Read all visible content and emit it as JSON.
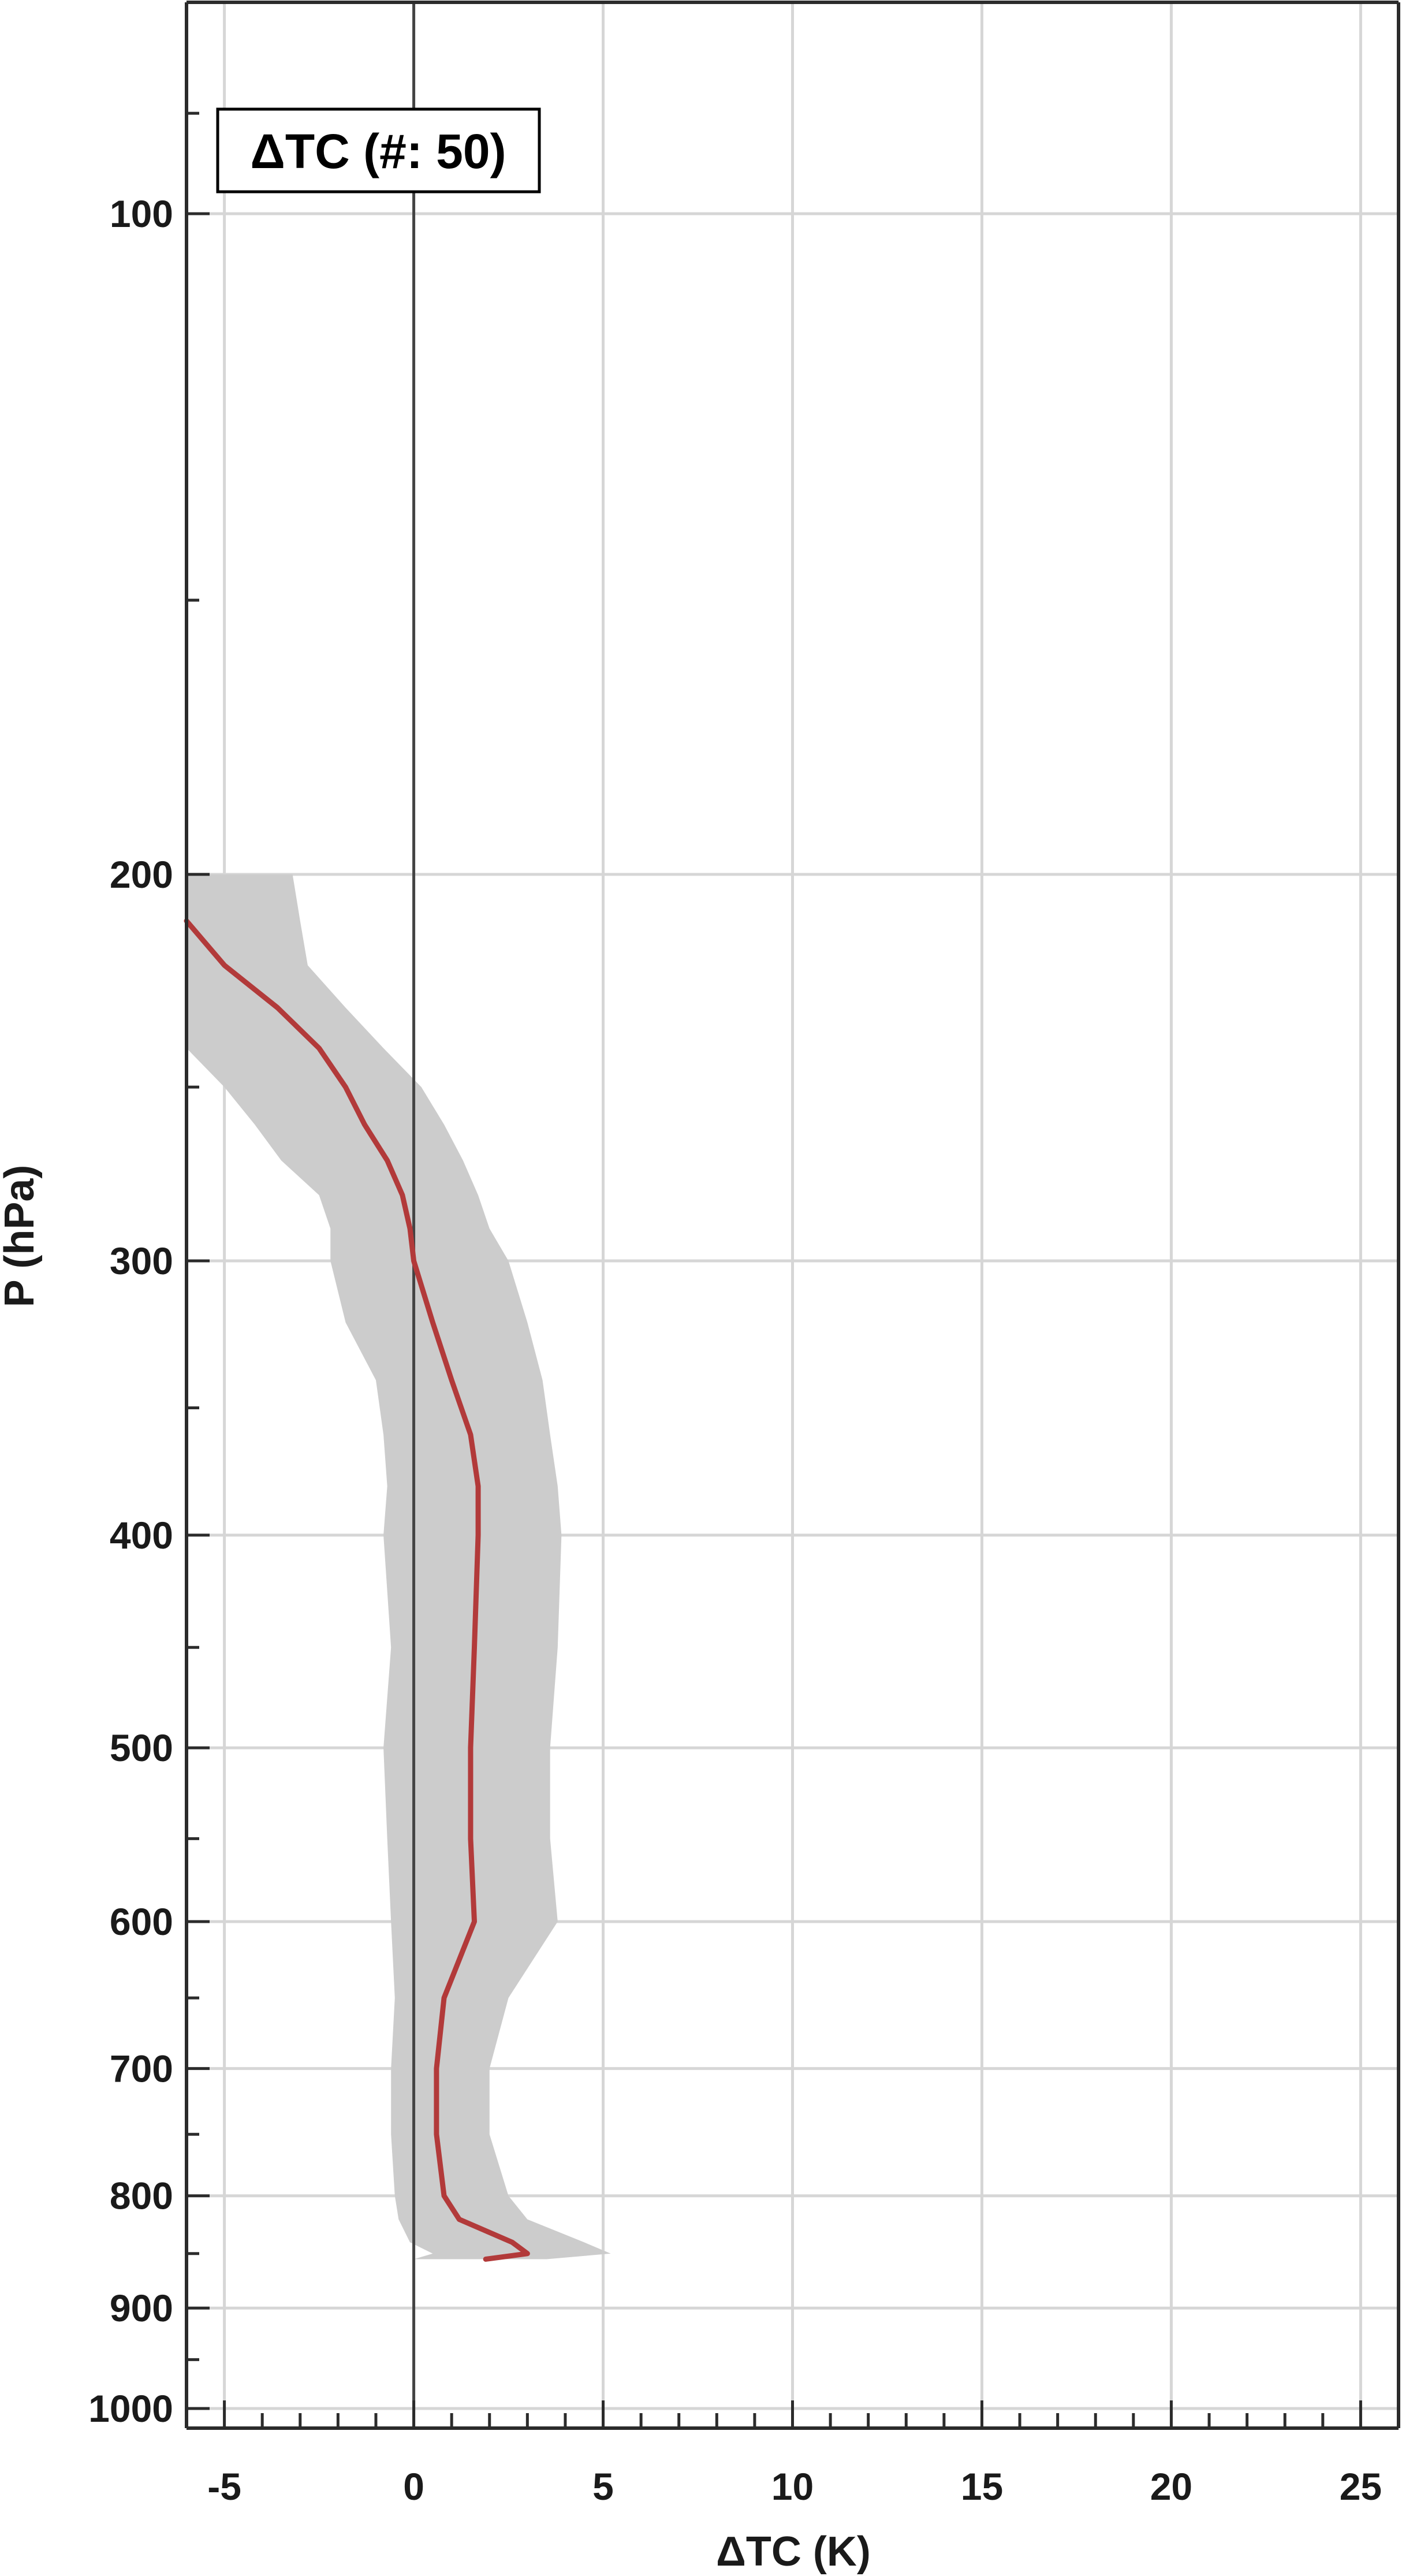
{
  "chart_data": {
    "type": "line",
    "legend_text": "ΔTC (#: 50)",
    "legend_position": "top-left",
    "xlabel": "ΔTC (K)",
    "ylabel": "P (hPa)",
    "xlim": [
      -6,
      26
    ],
    "ylim": [
      1030,
      70
    ],
    "y_scale": "log",
    "y_reversed": true,
    "grid": true,
    "x_ticks": [
      -5,
      0,
      5,
      10,
      15,
      20,
      25
    ],
    "x_tick_labels": [
      "-5",
      "0",
      "5",
      "10",
      "15",
      "20",
      "25"
    ],
    "y_ticks": [
      100,
      200,
      300,
      400,
      500,
      600,
      700,
      800,
      900,
      1000
    ],
    "y_tick_labels": [
      "100",
      "200",
      "300",
      "400",
      "500",
      "600",
      "700",
      "800",
      "900",
      "1000"
    ],
    "zero_line_x": 0,
    "colors": {
      "mean_line": "#b23a3a",
      "spread_fill": "#cccccc",
      "grid": "#d6d6d6",
      "axes": "#2b2b2b"
    },
    "series": [
      {
        "type": "line",
        "p": [
          210,
          220,
          230,
          240,
          250,
          260,
          270,
          280,
          290,
          300,
          320,
          340,
          360,
          380,
          400,
          450,
          500,
          550,
          600,
          650,
          700,
          750,
          800,
          820,
          840,
          850,
          855
        ],
        "x": [
          -6.0,
          -5.0,
          -3.6,
          -2.5,
          -1.8,
          -1.3,
          -0.7,
          -0.3,
          -0.1,
          0.0,
          0.5,
          1.0,
          1.5,
          1.7,
          1.7,
          1.6,
          1.5,
          1.5,
          1.6,
          0.8,
          0.6,
          0.6,
          0.8,
          1.2,
          2.6,
          3.0,
          1.9
        ]
      },
      {
        "type": "band",
        "p": [
          200,
          210,
          220,
          230,
          240,
          250,
          260,
          270,
          280,
          290,
          300,
          320,
          340,
          360,
          380,
          400,
          450,
          500,
          550,
          600,
          650,
          700,
          750,
          800,
          820,
          840,
          850,
          855
        ],
        "lower": [
          -6.0,
          -6.0,
          -6.0,
          -6.0,
          -6.0,
          -5.0,
          -4.2,
          -3.5,
          -2.5,
          -2.2,
          -2.2,
          -1.8,
          -1.0,
          -0.8,
          -0.7,
          -0.8,
          -0.6,
          -0.8,
          -0.7,
          -0.6,
          -0.5,
          -0.6,
          -0.6,
          -0.5,
          -0.4,
          -0.1,
          0.5,
          0.0
        ],
        "upper": [
          -3.2,
          -3.0,
          -2.8,
          -1.8,
          -0.8,
          0.2,
          0.8,
          1.3,
          1.7,
          2.0,
          2.5,
          3.0,
          3.4,
          3.6,
          3.8,
          3.9,
          3.8,
          3.6,
          3.6,
          3.8,
          2.5,
          2.0,
          2.0,
          2.5,
          3.0,
          4.5,
          5.2,
          3.5
        ]
      }
    ]
  }
}
